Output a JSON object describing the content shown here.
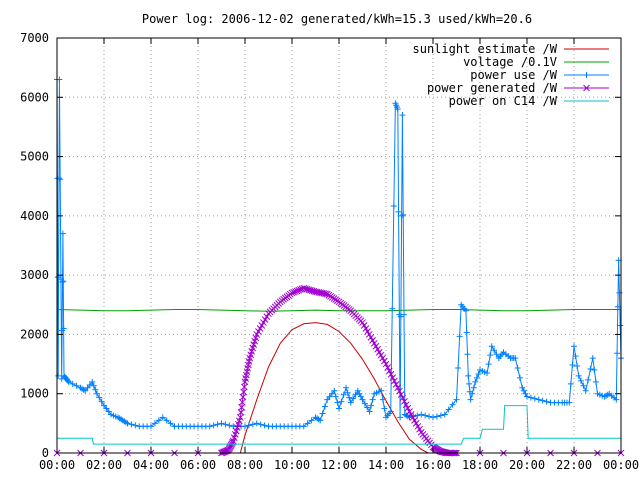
{
  "chart_data": {
    "type": "line",
    "title": "Power log: 2006-12-02 generated/kWh=15.3 used/kWh=20.6",
    "xlabel": "",
    "ylabel": "",
    "x_tick_labels": [
      "00:00",
      "02:00",
      "04:00",
      "06:00",
      "08:00",
      "10:00",
      "12:00",
      "14:00",
      "16:00",
      "18:00",
      "20:00",
      "22:00",
      "00:00"
    ],
    "x_ticks_hours": [
      0,
      2,
      4,
      6,
      8,
      10,
      12,
      14,
      16,
      18,
      20,
      22,
      24
    ],
    "y_ticks": [
      0,
      1000,
      2000,
      3000,
      4000,
      5000,
      6000,
      7000
    ],
    "xlim": [
      0,
      24
    ],
    "ylim": [
      0,
      7000
    ],
    "grid": true,
    "legend_position": "top-right",
    "series": [
      {
        "name": "sunlight estimate /W",
        "color": "#cc0000",
        "marker": "none",
        "x": [
          7.8,
          8.0,
          8.5,
          9.0,
          9.5,
          10.0,
          10.5,
          11.0,
          11.5,
          12.0,
          12.5,
          13.0,
          13.5,
          14.0,
          14.5,
          15.0,
          15.5,
          15.8
        ],
        "y": [
          0,
          300,
          900,
          1450,
          1850,
          2080,
          2180,
          2200,
          2170,
          2050,
          1850,
          1580,
          1250,
          880,
          530,
          230,
          60,
          0
        ]
      },
      {
        "name": "voltage /0.1V",
        "color": "#00a000",
        "marker": "none",
        "x": [
          0,
          1,
          2,
          3,
          4,
          5,
          6,
          7,
          8,
          9,
          10,
          11,
          12,
          13,
          14,
          15,
          16,
          17,
          18,
          19,
          20,
          21,
          22,
          23,
          24
        ],
        "y": [
          2420,
          2410,
          2400,
          2400,
          2410,
          2420,
          2420,
          2410,
          2400,
          2390,
          2400,
          2410,
          2400,
          2400,
          2400,
          2410,
          2420,
          2420,
          2410,
          2400,
          2400,
          2410,
          2420,
          2420,
          2420
        ]
      },
      {
        "name": "power use /W",
        "color": "#0080ff",
        "marker": "plus",
        "x": [
          0.0,
          0.05,
          0.1,
          0.2,
          0.25,
          0.3,
          0.4,
          0.5,
          1.0,
          1.2,
          1.5,
          1.7,
          2.0,
          2.3,
          2.6,
          2.8,
          3.0,
          3.5,
          4.0,
          4.5,
          5.0,
          5.5,
          6.0,
          6.5,
          7.0,
          7.5,
          8.0,
          8.5,
          9.0,
          9.5,
          10.0,
          10.5,
          11.0,
          11.2,
          11.5,
          11.8,
          12.0,
          12.3,
          12.5,
          12.8,
          13.0,
          13.3,
          13.5,
          13.8,
          14.0,
          14.2,
          14.4,
          14.5,
          14.6,
          14.7,
          14.8,
          15.0,
          15.5,
          16.0,
          16.5,
          17.0,
          17.2,
          17.4,
          17.5,
          17.6,
          17.8,
          18.0,
          18.3,
          18.5,
          18.8,
          19.0,
          19.3,
          19.5,
          19.8,
          20.0,
          20.5,
          21.0,
          21.5,
          21.8,
          22.0,
          22.2,
          22.5,
          22.8,
          23.0,
          23.3,
          23.5,
          23.8,
          23.9,
          24.0
        ],
        "y": [
          6300,
          1300,
          6300,
          1250,
          3700,
          1300,
          1250,
          1200,
          1100,
          1050,
          1200,
          1000,
          800,
          650,
          600,
          550,
          500,
          450,
          450,
          600,
          450,
          450,
          450,
          450,
          500,
          450,
          450,
          500,
          450,
          450,
          450,
          450,
          600,
          550,
          900,
          1050,
          750,
          1100,
          850,
          1050,
          900,
          700,
          1000,
          1050,
          600,
          700,
          5900,
          5800,
          600,
          5700,
          650,
          600,
          650,
          600,
          650,
          900,
          2500,
          2400,
          1300,
          900,
          1200,
          1400,
          1350,
          1800,
          1600,
          1700,
          1600,
          1600,
          1100,
          950,
          900,
          850,
          850,
          850,
          1800,
          1300,
          1050,
          1600,
          1000,
          950,
          1000,
          900,
          3250,
          1600
        ]
      },
      {
        "name": "power generated /W",
        "color": "#a000d0",
        "marker": "cross",
        "x": [
          0,
          7.0,
          7.3,
          7.5,
          7.8,
          8.0,
          8.2,
          8.5,
          9.0,
          9.5,
          10.0,
          10.5,
          11.0,
          11.5,
          12.0,
          12.5,
          13.0,
          13.5,
          14.0,
          14.5,
          15.0,
          15.5,
          16.0,
          16.3,
          16.6,
          17.0,
          24
        ],
        "y": [
          0,
          0,
          50,
          200,
          600,
          1200,
          1600,
          2000,
          2350,
          2550,
          2700,
          2780,
          2720,
          2680,
          2550,
          2400,
          2200,
          1850,
          1500,
          1100,
          700,
          350,
          100,
          30,
          0,
          0,
          0
        ]
      },
      {
        "name": "power on C14 /W",
        "color": "#00c8c8",
        "marker": "none",
        "x": [
          0,
          1.5,
          1.55,
          15.0,
          16.0,
          17.0,
          17.2,
          17.3,
          18.0,
          18.1,
          19.0,
          19.05,
          20.0,
          20.05,
          24
        ],
        "y": [
          250,
          250,
          150,
          150,
          150,
          150,
          150,
          250,
          250,
          400,
          400,
          800,
          800,
          250,
          250
        ]
      }
    ]
  }
}
